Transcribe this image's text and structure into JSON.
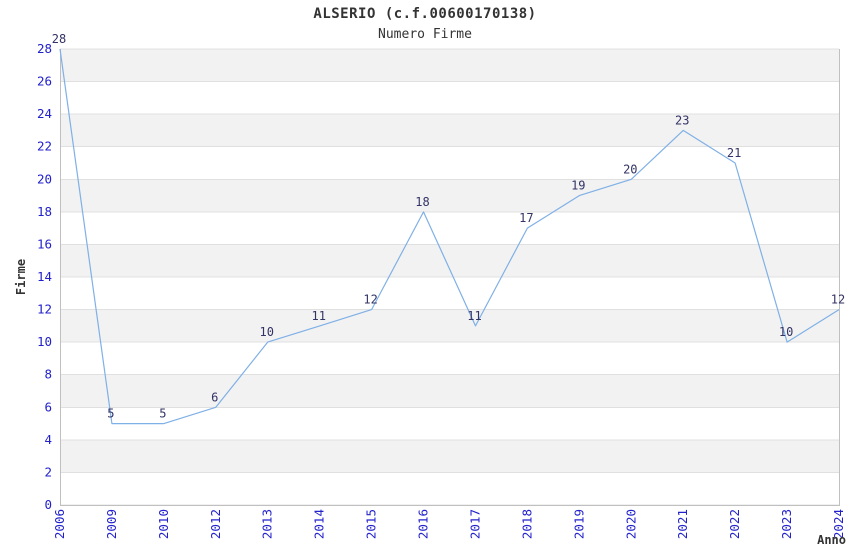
{
  "chart_data": {
    "type": "line",
    "title": "ALSERIO (c.f.00600170138)",
    "subtitle": "Numero Firme",
    "xlabel": "Anno",
    "ylabel": "Firme",
    "categories": [
      "2006",
      "2009",
      "2010",
      "2012",
      "2013",
      "2014",
      "2015",
      "2016",
      "2017",
      "2018",
      "2019",
      "2020",
      "2021",
      "2022",
      "2023",
      "2024"
    ],
    "values": [
      28,
      5,
      5,
      6,
      10,
      11,
      12,
      18,
      11,
      17,
      19,
      20,
      23,
      21,
      10,
      12
    ],
    "series_name": "Numero Firme",
    "ylim": [
      0,
      28
    ],
    "ytick_step": 2,
    "yticks": [
      0,
      2,
      4,
      6,
      8,
      10,
      12,
      14,
      16,
      18,
      20,
      22,
      24,
      26,
      28
    ],
    "grid": "horizontal gridlines with alternating shaded bands",
    "legend": "none",
    "point_labels": true,
    "colors": {
      "line": "#7fb0e6",
      "tick_label": "#2222cc",
      "point_label": "#333366",
      "band": "#f2f2f2",
      "gridline": "#e0e0e0",
      "axis_border": "#c0c0c0",
      "text": "#333333",
      "background": "#ffffff"
    }
  }
}
